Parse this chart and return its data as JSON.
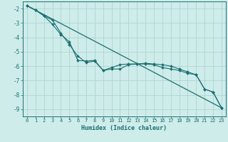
{
  "xlabel": "Humidex (Indice chaleur)",
  "ylabel": "",
  "background_color": "#ceecea",
  "grid_color": "#aed4d2",
  "line_color": "#1a7070",
  "xlim": [
    -0.5,
    23.5
  ],
  "ylim": [
    -9.5,
    -1.5
  ],
  "yticks": [
    -9,
    -8,
    -7,
    -6,
    -5,
    -4,
    -3,
    -2
  ],
  "xticks": [
    0,
    1,
    2,
    3,
    4,
    5,
    6,
    7,
    8,
    9,
    10,
    11,
    12,
    13,
    14,
    15,
    16,
    17,
    18,
    19,
    20,
    21,
    22,
    23
  ],
  "series1_x": [
    0,
    1,
    2,
    3,
    4,
    5,
    6,
    7,
    8,
    9,
    10,
    11,
    12,
    13,
    14,
    15,
    16,
    17,
    18,
    19,
    20,
    21,
    22,
    23
  ],
  "series1_y": [
    -1.8,
    -2.1,
    -2.5,
    -2.8,
    -3.7,
    -4.5,
    -5.3,
    -5.75,
    -5.65,
    -6.3,
    -6.2,
    -6.2,
    -5.9,
    -5.85,
    -5.85,
    -5.9,
    -6.1,
    -6.2,
    -6.3,
    -6.5,
    -6.6,
    -7.6,
    -7.8,
    -8.9
  ],
  "series2_x": [
    0,
    1,
    2,
    3,
    4,
    5,
    6,
    7,
    8,
    9,
    10,
    11,
    12,
    13,
    14,
    15,
    16,
    17,
    18,
    19,
    20,
    21,
    22,
    23
  ],
  "series2_y": [
    -1.8,
    -2.1,
    -2.5,
    -3.1,
    -3.8,
    -4.3,
    -5.6,
    -5.65,
    -5.6,
    -6.3,
    -6.1,
    -5.9,
    -5.85,
    -5.85,
    -5.8,
    -5.85,
    -5.9,
    -6.0,
    -6.2,
    -6.4,
    -6.6,
    -7.6,
    -7.8,
    -8.9
  ],
  "series3_x": [
    0,
    23
  ],
  "series3_y": [
    -1.8,
    -8.9
  ],
  "tick_fontsize": 5.0,
  "xlabel_fontsize": 6.0,
  "marker_size": 2.0
}
